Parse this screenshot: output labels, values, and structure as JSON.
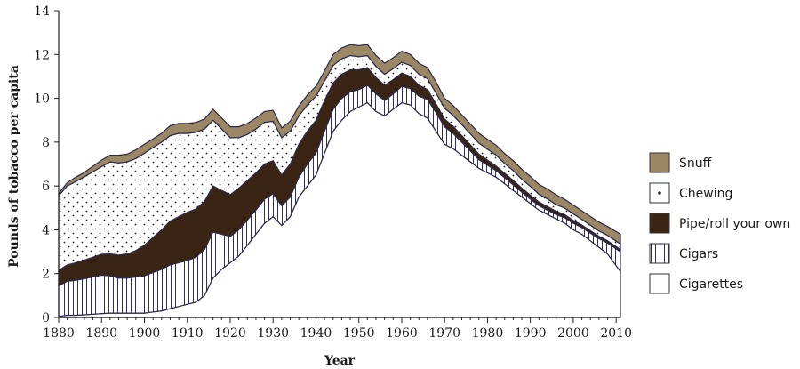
{
  "chart_data": {
    "type": "area",
    "stacked": true,
    "title": "",
    "xlabel": "Year",
    "ylabel": "Pounds of tobacco per capita",
    "xlim": [
      1880,
      2011
    ],
    "ylim": [
      0,
      14
    ],
    "xticks": [
      1880,
      1890,
      1900,
      1910,
      1920,
      1930,
      1940,
      1950,
      1960,
      1970,
      1980,
      1990,
      2000,
      2010
    ],
    "yticks": [
      0,
      2,
      4,
      6,
      8,
      10,
      12,
      14
    ],
    "grid": false,
    "legend_position": "right",
    "x": [
      1880,
      1882,
      1884,
      1886,
      1888,
      1890,
      1892,
      1894,
      1896,
      1898,
      1900,
      1902,
      1904,
      1906,
      1908,
      1910,
      1912,
      1914,
      1916,
      1918,
      1920,
      1922,
      1924,
      1926,
      1928,
      1930,
      1932,
      1934,
      1936,
      1938,
      1940,
      1942,
      1944,
      1946,
      1948,
      1950,
      1952,
      1954,
      1956,
      1958,
      1960,
      1962,
      1964,
      1966,
      1968,
      1970,
      1972,
      1974,
      1976,
      1978,
      1980,
      1982,
      1984,
      1986,
      1988,
      1990,
      1992,
      1994,
      1996,
      1998,
      2000,
      2002,
      2004,
      2006,
      2008,
      2011
    ],
    "series": [
      {
        "name": "Cigarettes",
        "color": "#ffffff",
        "values": [
          0.05,
          0.1,
          0.1,
          0.12,
          0.15,
          0.18,
          0.2,
          0.2,
          0.2,
          0.2,
          0.2,
          0.25,
          0.3,
          0.4,
          0.5,
          0.6,
          0.7,
          1.0,
          1.8,
          2.2,
          2.5,
          2.8,
          3.3,
          3.8,
          4.3,
          4.6,
          4.2,
          4.6,
          5.5,
          6.0,
          6.5,
          7.5,
          8.5,
          9.0,
          9.4,
          9.6,
          9.8,
          9.4,
          9.2,
          9.5,
          9.8,
          9.7,
          9.3,
          9.1,
          8.5,
          7.9,
          7.7,
          7.4,
          7.1,
          6.8,
          6.6,
          6.4,
          6.1,
          5.8,
          5.5,
          5.2,
          4.9,
          4.7,
          4.5,
          4.3,
          4.0,
          3.8,
          3.5,
          3.2,
          2.9,
          2.1
        ]
      },
      {
        "name": "Cigars",
        "color": "#d9d6ea",
        "values": [
          1.4,
          1.55,
          1.6,
          1.65,
          1.7,
          1.75,
          1.7,
          1.6,
          1.6,
          1.65,
          1.7,
          1.8,
          1.9,
          2.0,
          2.0,
          2.0,
          2.05,
          2.1,
          2.1,
          1.6,
          1.2,
          1.2,
          1.15,
          1.1,
          1.1,
          1.05,
          0.9,
          0.9,
          0.9,
          1.0,
          1.0,
          1.0,
          1.0,
          1.0,
          0.9,
          0.8,
          0.8,
          0.8,
          0.7,
          0.7,
          0.75,
          0.75,
          0.8,
          0.85,
          0.85,
          0.8,
          0.7,
          0.6,
          0.5,
          0.4,
          0.35,
          0.3,
          0.28,
          0.25,
          0.22,
          0.2,
          0.2,
          0.2,
          0.2,
          0.25,
          0.3,
          0.3,
          0.35,
          0.4,
          0.5,
          0.9
        ]
      },
      {
        "name": "Pipe/roll your own",
        "color": "#3a2413",
        "values": [
          0.7,
          0.75,
          0.8,
          0.85,
          0.9,
          0.95,
          1.0,
          1.05,
          1.1,
          1.2,
          1.4,
          1.6,
          1.8,
          2.0,
          2.1,
          2.2,
          2.2,
          2.2,
          2.1,
          2.0,
          1.9,
          1.9,
          1.8,
          1.7,
          1.6,
          1.5,
          1.4,
          1.5,
          1.5,
          1.5,
          1.5,
          1.4,
          1.2,
          1.1,
          1.0,
          0.9,
          0.8,
          0.75,
          0.7,
          0.65,
          0.6,
          0.55,
          0.5,
          0.45,
          0.4,
          0.35,
          0.32,
          0.3,
          0.28,
          0.25,
          0.23,
          0.21,
          0.2,
          0.2,
          0.19,
          0.18,
          0.17,
          0.16,
          0.15,
          0.14,
          0.13,
          0.12,
          0.11,
          0.1,
          0.1,
          0.1
        ]
      },
      {
        "name": "Chewing",
        "color": "#ffffff",
        "values": [
          3.4,
          3.6,
          3.7,
          3.8,
          3.9,
          4.0,
          4.2,
          4.2,
          4.2,
          4.2,
          4.2,
          4.1,
          4.0,
          3.9,
          3.8,
          3.6,
          3.5,
          3.3,
          3.0,
          2.8,
          2.6,
          2.3,
          2.1,
          2.0,
          1.9,
          1.8,
          1.7,
          1.5,
          1.3,
          1.2,
          1.1,
          0.9,
          0.8,
          0.7,
          0.65,
          0.6,
          0.55,
          0.5,
          0.5,
          0.5,
          0.5,
          0.5,
          0.5,
          0.5,
          0.5,
          0.5,
          0.5,
          0.5,
          0.5,
          0.5,
          0.5,
          0.5,
          0.45,
          0.45,
          0.4,
          0.4,
          0.35,
          0.35,
          0.3,
          0.3,
          0.3,
          0.25,
          0.25,
          0.25,
          0.25,
          0.25
        ]
      },
      {
        "name": "Snuff",
        "color": "#9c8765",
        "values": [
          0.1,
          0.15,
          0.2,
          0.2,
          0.25,
          0.3,
          0.3,
          0.35,
          0.35,
          0.4,
          0.4,
          0.4,
          0.4,
          0.45,
          0.45,
          0.45,
          0.45,
          0.45,
          0.5,
          0.5,
          0.5,
          0.5,
          0.5,
          0.5,
          0.5,
          0.5,
          0.45,
          0.45,
          0.45,
          0.45,
          0.45,
          0.45,
          0.5,
          0.5,
          0.5,
          0.5,
          0.5,
          0.5,
          0.5,
          0.5,
          0.5,
          0.5,
          0.5,
          0.5,
          0.5,
          0.45,
          0.45,
          0.45,
          0.45,
          0.45,
          0.45,
          0.45,
          0.45,
          0.45,
          0.45,
          0.45,
          0.45,
          0.45,
          0.45,
          0.4,
          0.4,
          0.4,
          0.4,
          0.4,
          0.4,
          0.45
        ]
      }
    ],
    "legend": [
      {
        "name": "Snuff",
        "color": "#9c8765",
        "icon": "solid-swatch"
      },
      {
        "name": "Chewing",
        "color": "#ffffff",
        "icon": "dot-swatch"
      },
      {
        "name": "Pipe/roll your own",
        "color": "#3a2413",
        "icon": "solid-swatch"
      },
      {
        "name": "Cigars",
        "color": "#d9d6ea",
        "icon": "vertical-stripe-swatch"
      },
      {
        "name": "Cigarettes",
        "color": "#ffffff",
        "icon": "plain-swatch"
      }
    ]
  }
}
